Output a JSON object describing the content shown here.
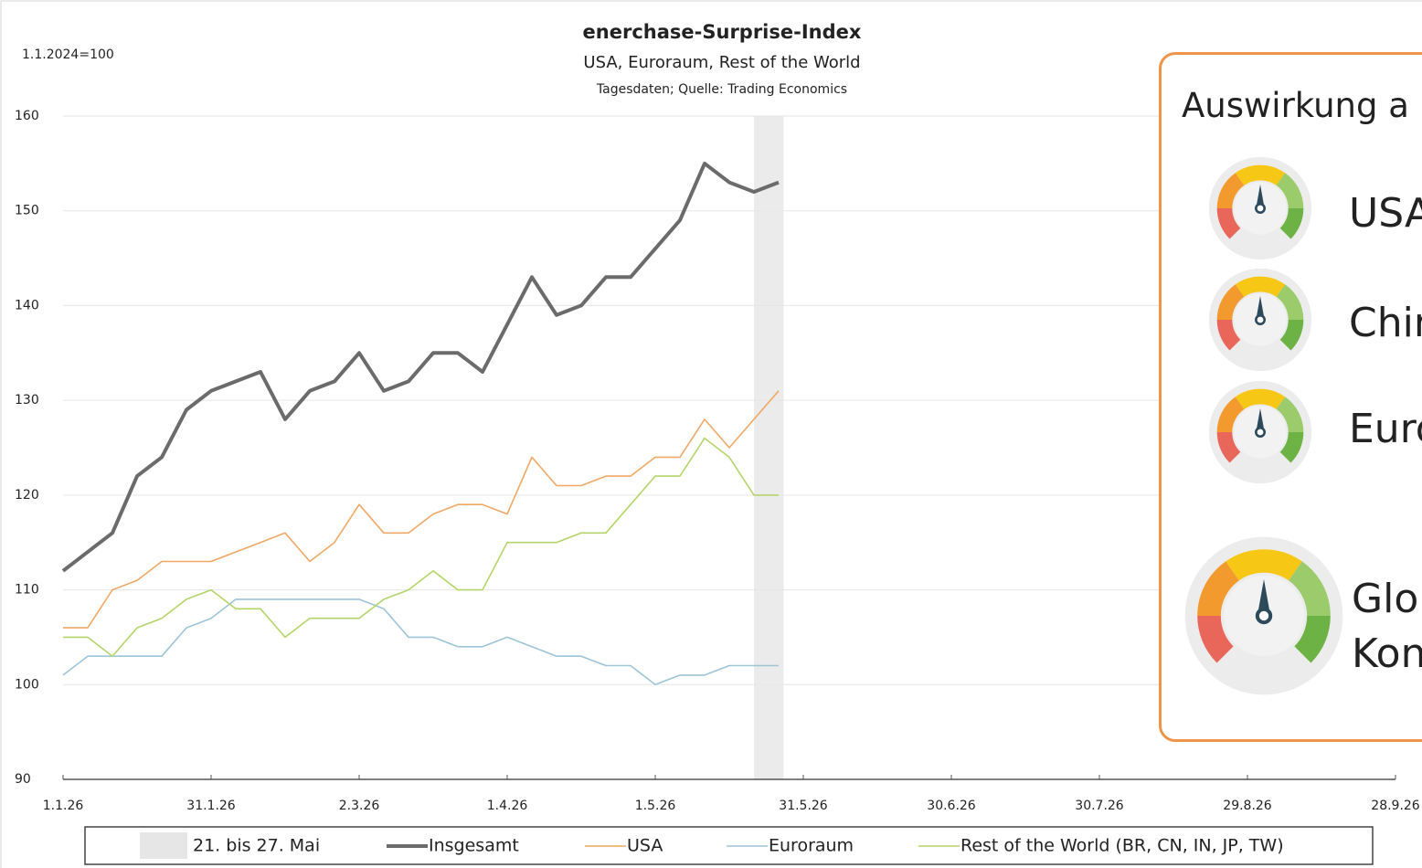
{
  "chart_data": {
    "type": "line",
    "title": "enerchase-Surprise-Index",
    "subtitle": "USA, Euroraum, Rest of the World",
    "note": "Tagesdaten; Quelle: Trading Economics",
    "ylabel": "1.1.2024=100",
    "x": [
      "2026-01-01",
      "2026-01-06",
      "2026-01-11",
      "2026-01-16",
      "2026-01-21",
      "2026-01-26",
      "2026-01-31",
      "2026-02-05",
      "2026-02-10",
      "2026-02-15",
      "2026-02-20",
      "2026-02-25",
      "2026-03-02",
      "2026-03-07",
      "2026-03-12",
      "2026-03-17",
      "2026-03-22",
      "2026-03-27",
      "2026-04-01",
      "2026-04-06",
      "2026-04-11",
      "2026-04-16",
      "2026-04-21",
      "2026-04-26",
      "2026-05-01",
      "2026-05-06",
      "2026-05-11",
      "2026-05-16",
      "2026-05-21",
      "2026-05-26"
    ],
    "series": [
      {
        "name": "Insgesamt",
        "color": "#6b6b6b",
        "values": [
          112,
          114,
          116,
          122,
          124,
          129,
          131,
          132,
          133,
          128,
          131,
          132,
          135,
          131,
          132,
          135,
          135,
          133,
          138,
          143,
          139,
          140,
          143,
          143,
          146,
          149,
          155,
          153,
          152,
          153
        ]
      },
      {
        "name": "USA",
        "color": "#f0a866",
        "values": [
          106,
          106,
          110,
          111,
          113,
          113,
          113,
          114,
          115,
          116,
          113,
          115,
          119,
          116,
          116,
          118,
          119,
          119,
          118,
          124,
          121,
          121,
          122,
          122,
          124,
          124,
          128,
          125,
          128,
          131
        ]
      },
      {
        "name": "Euroraum",
        "color": "#9ec4d8",
        "values": [
          101,
          103,
          103,
          103,
          103,
          106,
          107,
          109,
          109,
          109,
          109,
          109,
          109,
          108,
          105,
          105,
          104,
          104,
          105,
          104,
          103,
          103,
          102,
          102,
          100,
          101,
          101,
          102,
          102,
          102
        ]
      },
      {
        "name": "Rest of the World (BR, CN, IN, JP, TW)",
        "color": "#b5d46a",
        "values": [
          105,
          105,
          103,
          106,
          107,
          109,
          110,
          108,
          108,
          105,
          107,
          107,
          107,
          109,
          110,
          112,
          110,
          110,
          115,
          115,
          115,
          116,
          116,
          119,
          122,
          122,
          126,
          124,
          120,
          120
        ]
      }
    ],
    "highlight": {
      "label": "21. bis 27. Mai",
      "start": "2026-05-21",
      "end": "2026-05-27",
      "color": "#e6e6e6"
    },
    "xlim": [
      "2026-01-01",
      "2026-09-28"
    ],
    "xticks": [
      {
        "value": "2026-01-01",
        "label": "1.1.26"
      },
      {
        "value": "2026-01-31",
        "label": "31.1.26"
      },
      {
        "value": "2026-03-02",
        "label": "2.3.26"
      },
      {
        "value": "2026-04-01",
        "label": "1.4.26"
      },
      {
        "value": "2026-05-01",
        "label": "1.5.26"
      },
      {
        "value": "2026-05-31",
        "label": "31.5.26"
      },
      {
        "value": "2026-06-30",
        "label": "30.6.26"
      },
      {
        "value": "2026-07-30",
        "label": "30.7.26"
      },
      {
        "value": "2026-08-29",
        "label": "29.8.26"
      },
      {
        "value": "2026-09-28",
        "label": "28.9.26"
      }
    ],
    "ylim": [
      90,
      160
    ],
    "yticks": [
      90,
      100,
      110,
      120,
      130,
      140,
      150,
      160
    ],
    "grid": true
  },
  "panel": {
    "title": "Auswirkung a",
    "items": [
      "USA",
      "Chin",
      "Euro"
    ],
    "global": [
      "Glo",
      "Kon"
    ]
  }
}
